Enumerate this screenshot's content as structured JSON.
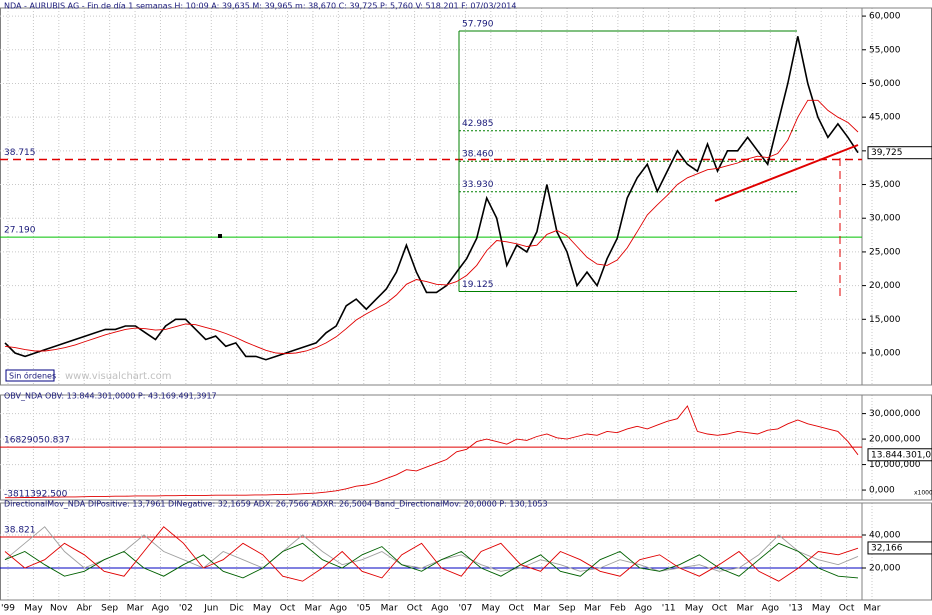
{
  "chart_data": [
    {
      "type": "line",
      "title": "NDA - AURUBIS AG - Fin de día 1 semanas H: 10:09 A: 39,635 M: 39,965 m: 38,670 C: 39,725 P: 5,760 V: 518.201 F: 07/03/2014",
      "series": [
        {
          "color": "#000000",
          "values": [
            11500,
            10000,
            9500,
            10000,
            10500,
            11000,
            11500,
            12000,
            12500,
            13000,
            13500,
            13500,
            14000,
            14000,
            13000,
            12000,
            14000,
            15000,
            15000,
            13500,
            12000,
            12500,
            11000,
            11500,
            9500,
            9500,
            9000,
            9500,
            10000,
            10500,
            11000,
            11500,
            13000,
            14000,
            17000,
            18000,
            16500,
            18000,
            19500,
            22000,
            26000,
            22000,
            19000,
            19000,
            20000,
            22000,
            24000,
            27000,
            33000,
            30000,
            23000,
            26000,
            25000,
            28000,
            35000,
            28000,
            25000,
            20000,
            22000,
            20000,
            24000,
            27000,
            33000,
            36000,
            38000,
            34000,
            37000,
            40000,
            38000,
            37000,
            41000,
            37000,
            40000,
            40000,
            42000,
            40000,
            38000,
            44000,
            50000,
            57000,
            50000,
            45000,
            42000,
            44000,
            42000,
            39725
          ]
        },
        {
          "color": "#e00000",
          "values": [
            11000,
            10800,
            10500,
            10300,
            10300,
            10500,
            10800,
            11200,
            11700,
            12200,
            12700,
            13100,
            13500,
            13700,
            13600,
            13400,
            13500,
            13900,
            14300,
            14200,
            13800,
            13400,
            12900,
            12300,
            11600,
            11000,
            10400,
            10000,
            9900,
            10000,
            10300,
            10800,
            11500,
            12400,
            13600,
            14900,
            15800,
            16600,
            17400,
            18600,
            20200,
            20900,
            20600,
            20200,
            20100,
            20600,
            21500,
            23000,
            25200,
            26700,
            26500,
            26200,
            25800,
            26000,
            27600,
            28200,
            27400,
            25800,
            24200,
            23200,
            23000,
            23800,
            25600,
            28000,
            30500,
            32000,
            33400,
            35000,
            36000,
            36600,
            37200,
            37400,
            37800,
            38200,
            38800,
            39200,
            39000,
            39600,
            41600,
            45000,
            47500,
            47500,
            46000,
            45000,
            44200,
            42800
          ]
        }
      ],
      "ylim": [
        5250,
        61200
      ],
      "yticks": [
        {
          "value": 10000,
          "label": "10,000"
        },
        {
          "value": 15000,
          "label": "15,000"
        },
        {
          "value": 20000,
          "label": "20,000"
        },
        {
          "value": 25000,
          "label": "25,000"
        },
        {
          "value": 30000,
          "label": "30,000"
        },
        {
          "value": 35000,
          "label": "35,000"
        },
        {
          "value": 40000,
          "label": "40,000"
        },
        {
          "value": 45000,
          "label": "45,000"
        },
        {
          "value": 50000,
          "label": "50,000"
        },
        {
          "value": 55000,
          "label": "55,000"
        },
        {
          "value": 60000,
          "label": "60,000"
        }
      ],
      "grid": true,
      "levels": [
        {
          "value": 57790,
          "label": "57.790"
        },
        {
          "value": 42985,
          "label": "42.985"
        },
        {
          "value": 38460,
          "label": "38.460"
        },
        {
          "value": 33930,
          "label": "33.930"
        },
        {
          "value": 19125,
          "label": "19.125"
        }
      ],
      "lines": [
        {
          "value": 38715,
          "label": "38.715",
          "color": "#e00000"
        },
        {
          "value": 27190,
          "label": "27.190",
          "color": "#00c000"
        }
      ],
      "last_value": {
        "value": 39725,
        "label": "39,725"
      },
      "annotations": [
        "Sin órdenes",
        "www.visualchart.com"
      ]
    },
    {
      "type": "line",
      "title": "OBV_NDA OBV: 13.844.301,0000 P: 43.169.491,3917",
      "series": [
        {
          "color": "#e00000",
          "values": [
            -3000000,
            -3000000,
            -2900000,
            -2900000,
            -2800000,
            -2800000,
            -2700000,
            -2700000,
            -2600000,
            -2500000,
            -2500000,
            -2400000,
            -2400000,
            -2300000,
            -2300000,
            -2300000,
            -2200000,
            -2200000,
            -2100000,
            -2100000,
            -2100000,
            -2000000,
            -2000000,
            -2000000,
            -2000000,
            -1900000,
            -1900000,
            -1800000,
            -1700000,
            -1600000,
            -1400000,
            -1200000,
            -800000,
            -300000,
            500000,
            1500000,
            2000000,
            3000000,
            4500000,
            6000000,
            8000000,
            7500000,
            9000000,
            10500000,
            12000000,
            15000000,
            16000000,
            19000000,
            20000000,
            19000000,
            18000000,
            20000000,
            19500000,
            21000000,
            22000000,
            20500000,
            20000000,
            21000000,
            22000000,
            21500000,
            23000000,
            22500000,
            24000000,
            25000000,
            24000000,
            25500000,
            27000000,
            28000000,
            33000000,
            23000000,
            22000000,
            21500000,
            22000000,
            23000000,
            22500000,
            22000000,
            23500000,
            24000000,
            26000000,
            27500000,
            26000000,
            25000000,
            24000000,
            23000000,
            19000000,
            13844301
          ]
        }
      ],
      "ylim": [
        -3900000,
        37300000
      ],
      "yticks": [
        {
          "value": 0,
          "label": "0,000"
        },
        {
          "value": 10000000,
          "label": "10,000,000"
        },
        {
          "value": 20000000,
          "label": "20,000,000"
        },
        {
          "value": 30000000,
          "label": "30,000,000"
        }
      ],
      "grid": true,
      "lines": [
        {
          "value": 16829050.837,
          "label": "16829050.837",
          "color": "#e00000"
        },
        {
          "value": -3811392.5,
          "label": "-3811392.500",
          "color": "none"
        }
      ],
      "last_value": {
        "value": 13844301,
        "label": "13.844.301,000"
      },
      "scale_label": "x1000"
    },
    {
      "type": "line",
      "title": "DirectionalMov_NDA DIPositive: 13,7961 DINegative: 32,1659 ADX: 26,7566 ADXR: 26,5004 Band_DirectionalMov: 20,0000 P: 130,1053",
      "series": [
        {
          "color": "#a0a0a0",
          "values": [
            25,
            35,
            45,
            30,
            20,
            25,
            30,
            40,
            30,
            25,
            20,
            30,
            25,
            20,
            30,
            40,
            30,
            22,
            25,
            30,
            22,
            20,
            25,
            28,
            22,
            18,
            20,
            25,
            22,
            18,
            20,
            25,
            22,
            18,
            20,
            22,
            18,
            20,
            28,
            40,
            30,
            25,
            22,
            27
          ]
        },
        {
          "color": "#006000",
          "values": [
            25,
            30,
            22,
            15,
            18,
            25,
            30,
            20,
            15,
            22,
            28,
            18,
            14,
            20,
            30,
            35,
            25,
            20,
            28,
            33,
            22,
            18,
            25,
            30,
            20,
            15,
            22,
            28,
            18,
            15,
            25,
            30,
            20,
            18,
            22,
            28,
            20,
            15,
            25,
            35,
            30,
            20,
            15,
            14
          ]
        },
        {
          "color": "#e00000",
          "values": [
            30,
            20,
            25,
            35,
            28,
            18,
            15,
            30,
            45,
            35,
            20,
            25,
            35,
            28,
            15,
            12,
            20,
            30,
            18,
            14,
            28,
            35,
            20,
            15,
            30,
            35,
            22,
            18,
            30,
            25,
            18,
            15,
            25,
            28,
            20,
            15,
            22,
            30,
            18,
            12,
            20,
            30,
            28,
            32
          ]
        }
      ],
      "ylim": [
        0.6,
        59.4
      ],
      "yticks": [
        {
          "value": 20,
          "label": "20,000"
        },
        {
          "value": 40,
          "label": "40,000"
        }
      ],
      "grid": true,
      "lines": [
        {
          "value": 38.821,
          "label": 38.821,
          "color": "#e00000"
        },
        {
          "value": 20,
          "color": "#0000c0"
        }
      ],
      "last_value": {
        "value": 32.166,
        "label": "32,166"
      }
    }
  ],
  "x_axis_labels": [
    "'99",
    "May",
    "Nov",
    "Abr",
    "Sep",
    "Mar",
    "Ago",
    "'02",
    "Jun",
    "Dic",
    "May",
    "Oct",
    "Mar",
    "Ago",
    "'05",
    "Mar",
    "Oct",
    "Ago",
    "'07",
    "May",
    "Oct",
    "Mar",
    "Sep",
    "Mar",
    "Feb",
    "Ago",
    "'11",
    "May",
    "Oct",
    "Mar",
    "Ago",
    "'13",
    "May",
    "Oct",
    "Mar"
  ]
}
